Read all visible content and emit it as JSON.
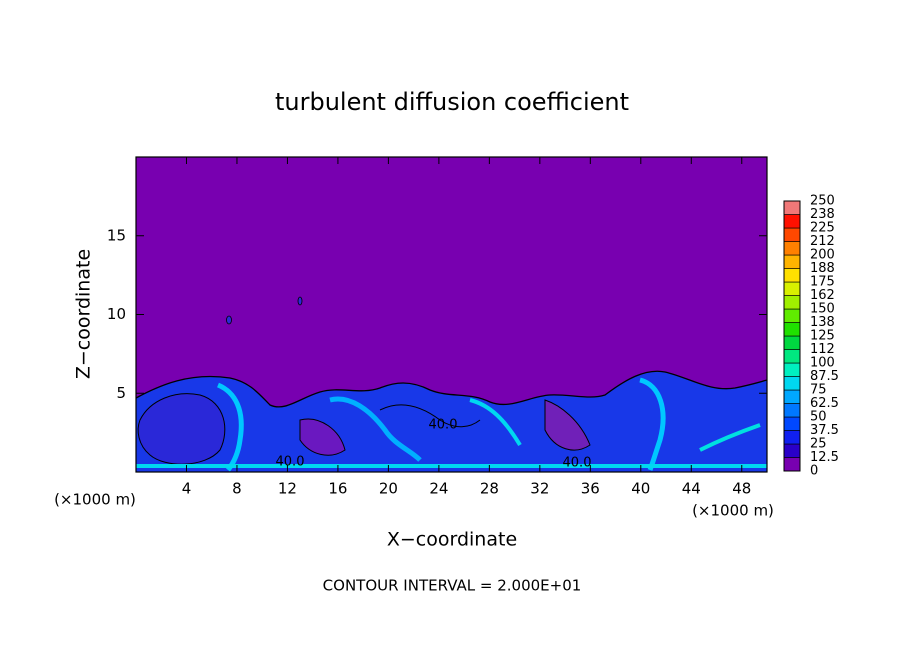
{
  "chart_data": {
    "type": "contour",
    "title": "turbulent diffusion coefficient",
    "x_label": "X−coordinate",
    "y_label": "Z−coordinate",
    "x_unit_label": "(×1000 m)",
    "footnote": "CONTOUR INTERVAL = 2.000E+01",
    "xlim": [
      0,
      50
    ],
    "xticks": [
      4,
      8,
      12,
      16,
      20,
      24,
      28,
      32,
      36,
      40,
      44,
      48
    ],
    "ylim": [
      0,
      20
    ],
    "yticks": [
      5,
      10,
      15
    ],
    "colorbar": {
      "ticks": [
        0,
        12.5,
        25,
        37.5,
        50,
        62.5,
        75,
        87.5,
        100,
        112,
        125,
        138,
        150,
        162,
        175,
        188,
        200,
        212,
        225,
        238,
        250
      ],
      "colors": [
        "#7800b0",
        "#2a00c8",
        "#1020f0",
        "#0048ff",
        "#0078ff",
        "#00a8ff",
        "#00d8f0",
        "#00f0c0",
        "#00e880",
        "#00d840",
        "#20e000",
        "#60ec00",
        "#a0f000",
        "#d8f000",
        "#ffe000",
        "#ffb400",
        "#ff8000",
        "#ff4800",
        "#ff1000",
        "#f07878"
      ]
    },
    "contour_labels": {
      "values": [
        40,
        40,
        40
      ],
      "value_labels": [
        "40.0",
        "40.0",
        "40.0"
      ]
    }
  }
}
